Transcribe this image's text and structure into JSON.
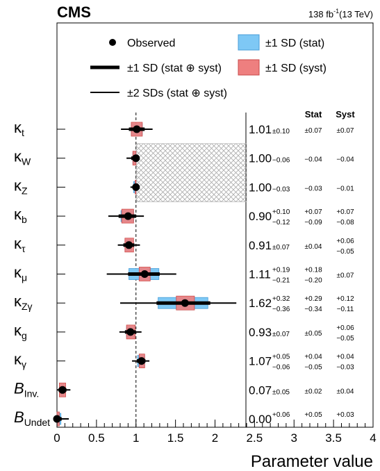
{
  "header": {
    "experiment": "CMS",
    "luminosity": "138 fb",
    "lumi_exponent": "-1",
    "energy": "(13 TeV)"
  },
  "legend": {
    "observed": "Observed",
    "stat_box": "±1 SD (stat)",
    "one_sd_total": "±1 SD (stat ⊕ syst)",
    "syst_box": "±1 SD (syst)",
    "two_sd_total": "±2 SDs (stat ⊕ syst)"
  },
  "columns": {
    "stat": "Stat",
    "syst": "Syst"
  },
  "colors": {
    "stat": "#7ec8f5",
    "stat_edge": "#4a9ed8",
    "syst": "#ee7f7f",
    "syst_edge": "#c84a4a",
    "hatch": "#aaaaaa"
  },
  "chart_data": {
    "type": "scatter",
    "xlabel": "Parameter value",
    "xlim": [
      0,
      4
    ],
    "xticks": [
      "0",
      "0.5",
      "1",
      "1.5",
      "2",
      "2.5",
      "3",
      "3.5",
      "4"
    ],
    "reference_line": 1,
    "hatched_region": {
      "x_min": 1,
      "x_max": 2.4,
      "rows": [
        "κW",
        "κZ"
      ]
    },
    "series": [
      {
        "sym": "κ",
        "sub": "t",
        "central": 1.01,
        "tot_up": 0.1,
        "tot_dn": 0.1,
        "two_up": 0.2,
        "two_dn": 0.2,
        "stat_up": 0.07,
        "stat_dn": 0.07,
        "syst_up": 0.07,
        "syst_dn": 0.07,
        "label": {
          "value": "1.01",
          "tot": "±0.10",
          "stat": "±0.07",
          "syst": "±0.07"
        }
      },
      {
        "sym": "κ",
        "sub": "W",
        "central": 1.0,
        "tot_up": 0.0,
        "tot_dn": 0.06,
        "two_up": 0.0,
        "two_dn": 0.12,
        "stat_up": 0.0,
        "stat_dn": 0.04,
        "syst_up": 0.0,
        "syst_dn": 0.04,
        "label": {
          "value": "1.00",
          "tot": "−0.06",
          "stat": "−0.04",
          "syst": "−0.04"
        }
      },
      {
        "sym": "κ",
        "sub": "Z",
        "central": 1.0,
        "tot_up": 0.0,
        "tot_dn": 0.03,
        "two_up": 0.0,
        "two_dn": 0.07,
        "stat_up": 0.0,
        "stat_dn": 0.03,
        "syst_up": 0.0,
        "syst_dn": 0.01,
        "label": {
          "value": "1.00",
          "tot": "−0.03",
          "stat": "−0.03",
          "syst": "−0.01"
        }
      },
      {
        "sym": "κ",
        "sub": "b",
        "central": 0.9,
        "tot_up": 0.1,
        "tot_dn": 0.12,
        "two_up": 0.2,
        "two_dn": 0.25,
        "stat_up": 0.07,
        "stat_dn": 0.09,
        "syst_up": 0.07,
        "syst_dn": 0.08,
        "label": {
          "value": "0.90",
          "tot_up": "+0.10",
          "tot_dn": "−0.12",
          "stat_up": "+0.07",
          "stat_dn": "−0.09",
          "syst_up": "+0.07",
          "syst_dn": "−0.08"
        }
      },
      {
        "sym": "κ",
        "sub": "τ",
        "central": 0.91,
        "tot_up": 0.07,
        "tot_dn": 0.07,
        "two_up": 0.14,
        "two_dn": 0.14,
        "stat_up": 0.04,
        "stat_dn": 0.04,
        "syst_up": 0.06,
        "syst_dn": 0.05,
        "label": {
          "value": "0.91",
          "tot": "±0.07",
          "stat": "±0.04",
          "syst_up": "+0.06",
          "syst_dn": "−0.05"
        }
      },
      {
        "sym": "κ",
        "sub": "μ",
        "central": 1.11,
        "tot_up": 0.19,
        "tot_dn": 0.21,
        "two_up": 0.4,
        "two_dn": 0.48,
        "stat_up": 0.18,
        "stat_dn": 0.2,
        "syst_up": 0.07,
        "syst_dn": 0.07,
        "label": {
          "value": "1.11",
          "tot_up": "+0.19",
          "tot_dn": "−0.21",
          "stat_up": "+0.18",
          "stat_dn": "−0.20",
          "syst": "±0.07"
        }
      },
      {
        "sym": "κ",
        "sub": "Zγ",
        "central": 1.62,
        "tot_up": 0.32,
        "tot_dn": 0.36,
        "two_up": 0.65,
        "two_dn": 0.82,
        "stat_up": 0.29,
        "stat_dn": 0.34,
        "syst_up": 0.12,
        "syst_dn": 0.11,
        "label": {
          "value": "1.62",
          "tot_up": "+0.32",
          "tot_dn": "−0.36",
          "stat_up": "+0.29",
          "stat_dn": "−0.34",
          "syst_up": "+0.12",
          "syst_dn": "−0.11"
        }
      },
      {
        "sym": "κ",
        "sub": "g",
        "central": 0.93,
        "tot_up": 0.07,
        "tot_dn": 0.07,
        "two_up": 0.14,
        "two_dn": 0.14,
        "stat_up": 0.05,
        "stat_dn": 0.05,
        "syst_up": 0.06,
        "syst_dn": 0.05,
        "label": {
          "value": "0.93",
          "tot": "±0.07",
          "stat": "±0.05",
          "syst_up": "+0.06",
          "syst_dn": "−0.05"
        }
      },
      {
        "sym": "κ",
        "sub": "γ",
        "central": 1.07,
        "tot_up": 0.05,
        "tot_dn": 0.06,
        "two_up": 0.1,
        "two_dn": 0.12,
        "stat_up": 0.04,
        "stat_dn": 0.05,
        "syst_up": 0.04,
        "syst_dn": 0.03,
        "label": {
          "value": "1.07",
          "tot_up": "+0.05",
          "tot_dn": "−0.06",
          "stat_up": "+0.04",
          "stat_dn": "−0.05",
          "syst_up": "+0.04",
          "syst_dn": "−0.03"
        }
      },
      {
        "sym": "B",
        "sub": "Inv.",
        "central": 0.07,
        "tot_up": 0.05,
        "tot_dn": 0.05,
        "two_up": 0.1,
        "two_dn": 0.07,
        "stat_up": 0.02,
        "stat_dn": 0.02,
        "syst_up": 0.04,
        "syst_dn": 0.04,
        "label": {
          "value": "0.07",
          "tot": "±0.05",
          "stat": "±0.02",
          "syst": "±0.04"
        }
      },
      {
        "sym": "B",
        "sub": "Undet",
        "central": 0.0,
        "tot_up": 0.06,
        "tot_dn": 0.0,
        "two_up": 0.15,
        "two_dn": 0.0,
        "stat_up": 0.05,
        "stat_dn": 0.0,
        "syst_up": 0.03,
        "syst_dn": 0.0,
        "label": {
          "value": "0.00",
          "tot_up": "+0.06",
          "stat_up": "+0.05",
          "syst_up": "+0.03"
        }
      }
    ]
  }
}
